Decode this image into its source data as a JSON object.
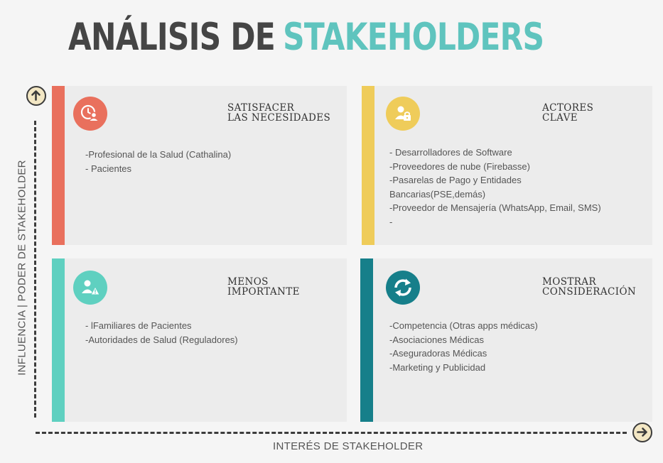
{
  "title": {
    "part1": "ANÁLISIS DE",
    "part2": "STAKEHOLDERS"
  },
  "axes": {
    "y_label": "INFLUENCIA | PODER DE STAKEHOLDER",
    "x_label": "INTERÉS DE STAKEHOLDER",
    "y_icon": "arrow-up-icon",
    "x_icon": "arrow-right-icon"
  },
  "quadrants": [
    {
      "title": "SATISFACER\nLAS NECESIDADES",
      "color": "#e9705d",
      "icon": "clock-user-icon",
      "items": [
        "-Profesional de la Salud (Cathalina)",
        "- Pacientes"
      ]
    },
    {
      "title": "ACTORES\nCLAVE",
      "color": "#efcc5a",
      "icon": "user-lock-icon",
      "items": [
        "- Desarrolladores de Software",
        "-Proveedores de nube (Firebasse)",
        "-Pasarelas de Pago y Entidades Bancarias(PSE,demás)",
        "-Proveedor de Mensajería (WhatsApp, Email, SMS)",
        "-"
      ]
    },
    {
      "title": "MENOS\nIMPORTANTE",
      "color": "#5fd0c0",
      "icon": "user-warning-icon",
      "items": [
        "- lFamiliares de Pacientes",
        "-Autoridades de Salud (Reguladores)"
      ]
    },
    {
      "title": "MOSTRAR\nCONSIDERACIÓN",
      "color": "#167f8a",
      "icon": "refresh-icon",
      "items": [
        "-Competencia (Otras apps médicas)",
        "-Asociaciones Médicas",
        "-Aseguradoras Médicas",
        "-Marketing y Publicidad"
      ]
    }
  ]
}
